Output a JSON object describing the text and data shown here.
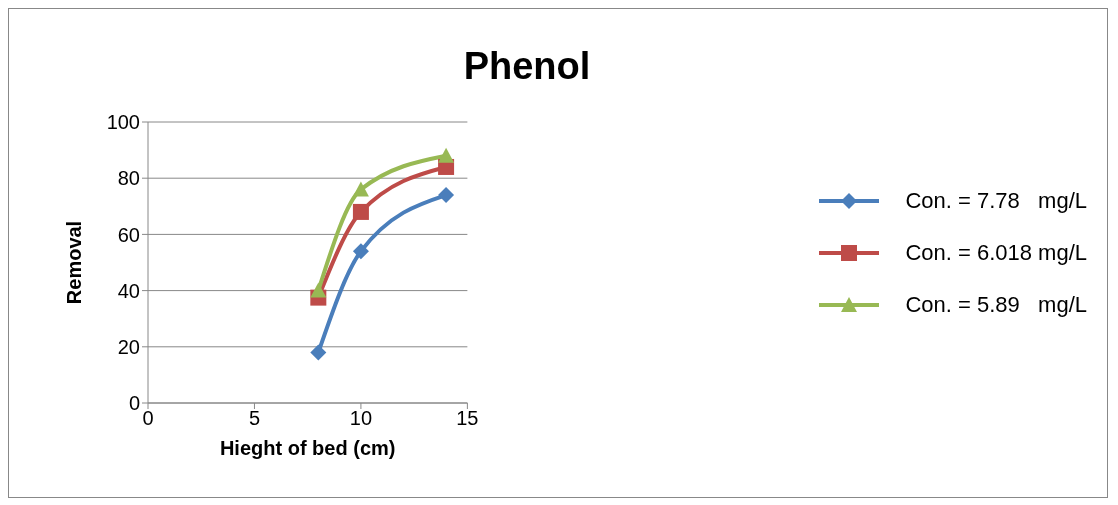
{
  "chart_data": {
    "type": "line",
    "title": "Phenol",
    "xlabel": "Hieght of bed (cm)",
    "ylabel": "Removal",
    "xlim": [
      0,
      15
    ],
    "xticks": [
      0,
      5,
      10,
      15
    ],
    "ylim": [
      0,
      100
    ],
    "yticks": [
      0,
      20,
      40,
      60,
      80,
      100
    ],
    "grid": "y",
    "legend": "right",
    "line_style": "solid",
    "series": [
      {
        "name": "Con. = 7.78   mg/L",
        "color": "#4a7ebb",
        "marker": "diamond",
        "x": [
          8,
          10,
          14
        ],
        "values": [
          18,
          54,
          74
        ]
      },
      {
        "name": "Con. = 6.018 mg/L",
        "color": "#be4b48",
        "marker": "square",
        "x": [
          8,
          10,
          14
        ],
        "values": [
          37.5,
          68,
          84
        ]
      },
      {
        "name": "Con. = 5.89   mg/L",
        "color": "#98b954",
        "marker": "triangle",
        "x": [
          8,
          10,
          14
        ],
        "values": [
          40,
          76,
          88
        ]
      }
    ]
  }
}
